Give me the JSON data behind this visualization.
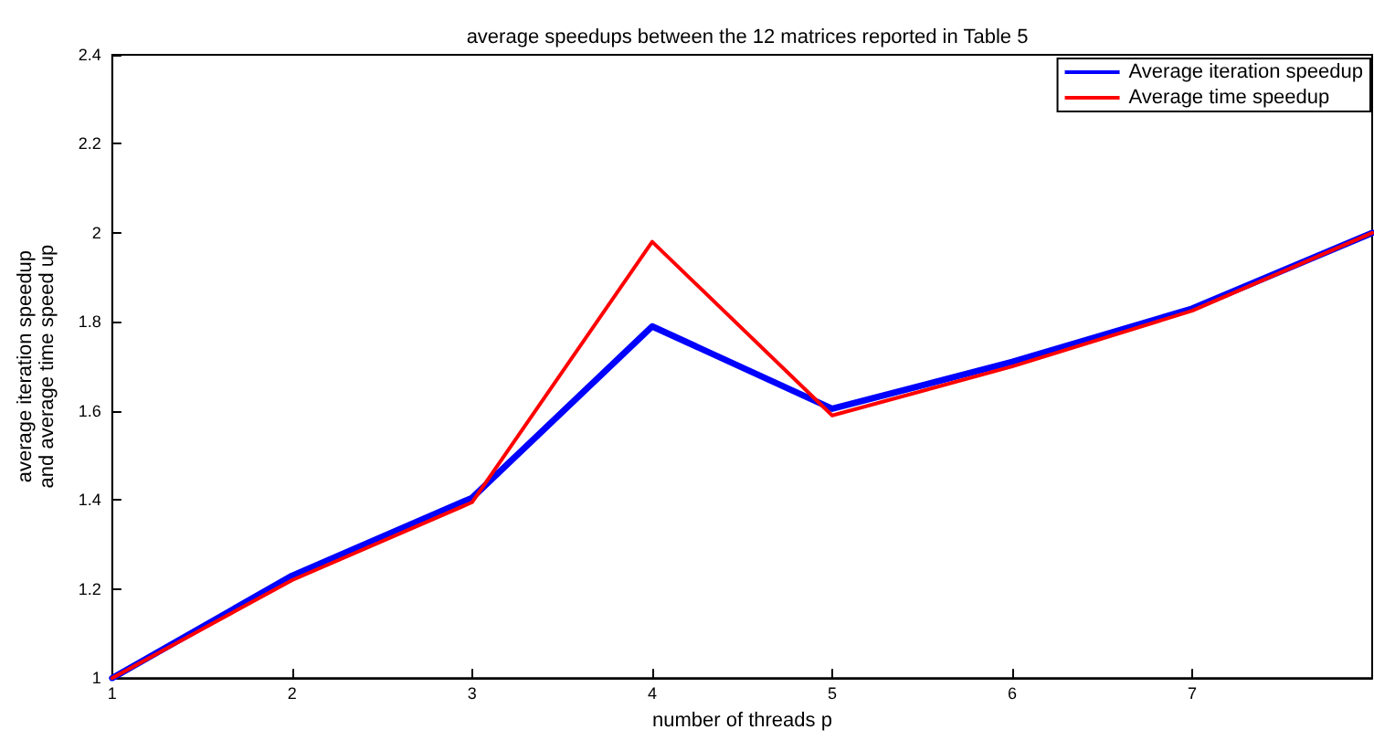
{
  "chart_data": {
    "type": "line",
    "title": "average speedups between the 12 matrices reported in Table 5",
    "xlabel": "number of threads p",
    "ylabel": "average iteration speedup\nand average time speed up",
    "x": [
      1,
      2,
      3,
      4,
      5,
      6,
      7,
      8
    ],
    "series": [
      {
        "name": "Average iteration speedup",
        "color": "#0000ff",
        "values": [
          1.0,
          1.23,
          1.405,
          1.79,
          1.605,
          1.71,
          1.83,
          2.0
        ]
      },
      {
        "name": "Average time speedup",
        "color": "#ff0000",
        "values": [
          1.0,
          1.22,
          1.395,
          1.98,
          1.59,
          1.7,
          1.825,
          2.0
        ]
      }
    ],
    "xlim": [
      1,
      8
    ],
    "xticks": [
      1,
      2,
      3,
      4,
      5,
      6,
      7
    ],
    "ylim": [
      1,
      2.4
    ],
    "yticks": [
      1,
      1.2,
      1.4,
      1.6,
      1.8,
      2,
      2.2,
      2.4
    ],
    "grid": false,
    "legend": "top right",
    "marker": "none",
    "line_style": "solid"
  }
}
